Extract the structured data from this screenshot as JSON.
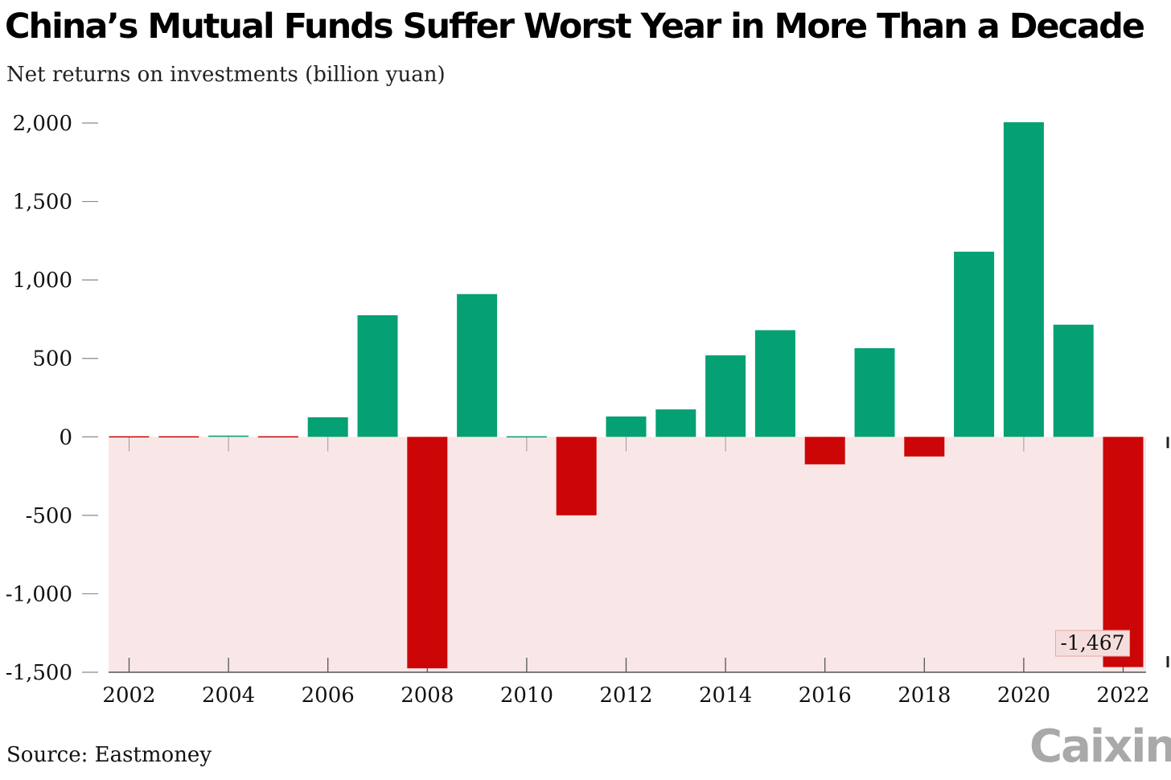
{
  "header": {
    "title": "China’s Mutual Funds Suffer Worst Year in More Than a Decade",
    "subtitle": "Net returns on investments (billion yuan)"
  },
  "footer": {
    "source": "Source: Eastmoney",
    "logo": "Caixin"
  },
  "colors": {
    "positive": "#05a073",
    "negative": "#cc0606",
    "negative_region": "#f9e7e7",
    "axis": "#555555"
  },
  "chart_data": {
    "type": "bar",
    "title": "China’s Mutual Funds Suffer Worst Year in More Than a Decade",
    "subtitle": "Net returns on investments (billion yuan)",
    "categories": [
      "2002",
      "2003",
      "2004",
      "2005",
      "2006",
      "2007",
      "2008",
      "2009",
      "2010",
      "2011",
      "2012",
      "2013",
      "2014",
      "2015",
      "2016",
      "2017",
      "2018",
      "2019",
      "2020",
      "2021",
      "2022"
    ],
    "values": [
      -5,
      -3,
      8,
      -3,
      125,
      775,
      -1475,
      910,
      5,
      -500,
      130,
      175,
      520,
      680,
      -175,
      565,
      -125,
      1180,
      2005,
      715,
      -1467
    ],
    "xlabel": "",
    "ylabel": "",
    "ylim": [
      -1500,
      2000
    ],
    "y_ticks": [
      2000,
      1500,
      1000,
      500,
      0,
      -500,
      -1000,
      -1500
    ],
    "y_tick_labels": [
      "2,000",
      "1,500",
      "1,000",
      "500",
      "0",
      "-500",
      "-1,000",
      "-1,500"
    ],
    "x_tick_labels": [
      "2002",
      "2004",
      "2006",
      "2008",
      "2010",
      "2012",
      "2014",
      "2016",
      "2018",
      "2020",
      "2022"
    ],
    "annotation": {
      "category": "2022",
      "text": "-1,467"
    },
    "grid": false,
    "legend": "none"
  }
}
